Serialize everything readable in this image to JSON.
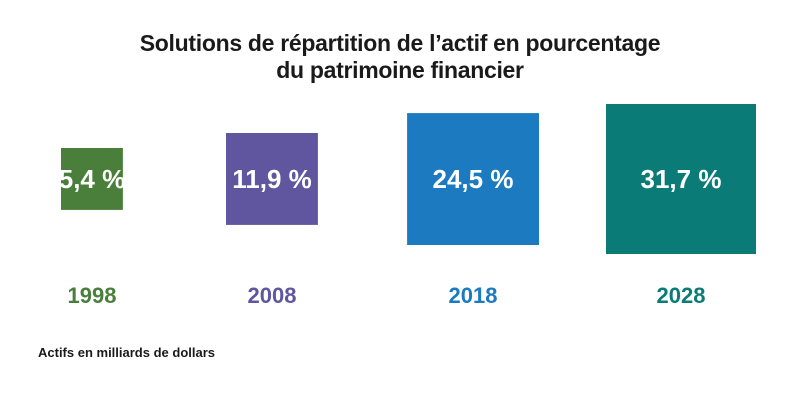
{
  "chart_data": {
    "type": "bar",
    "title_lines": [
      "Solutions de répartition de l’actif en pourcentage",
      "du patrimoine financier"
    ],
    "categories": [
      "1998",
      "2008",
      "2018",
      "2028"
    ],
    "values": [
      5.4,
      11.9,
      24.5,
      31.7
    ],
    "value_labels": [
      "5,4 %",
      "11,9 %",
      "24,5 %",
      "31,7 %"
    ],
    "colors": [
      "#4a7f3b",
      "#5f569f",
      "#1b7ac0",
      "#0a7b76"
    ],
    "footnote": "Actifs en milliards de dollars"
  }
}
